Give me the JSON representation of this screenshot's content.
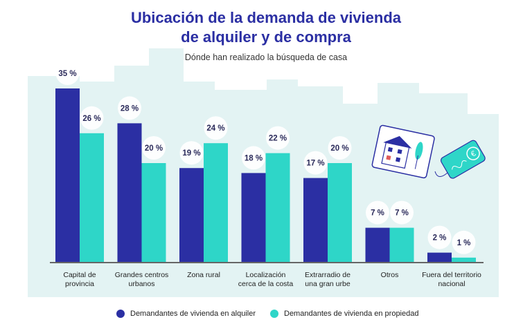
{
  "title_line1": "Ubicación de la demanda de vivienda",
  "title_line2": "de alquiler y de compra",
  "subtitle": "Dónde han realizado la búsqueda de casa",
  "colors": {
    "alquiler": "#2b2fa3",
    "propiedad": "#2ed6c8",
    "background_city": "#e3f3f3"
  },
  "chart_data": {
    "type": "bar",
    "categories": [
      [
        "Capital de",
        "provincia"
      ],
      [
        "Grandes centros",
        "urbanos"
      ],
      [
        "Zona rural"
      ],
      [
        "Localización",
        "cerca de la costa"
      ],
      [
        "Extrarradio de",
        "una gran urbe"
      ],
      [
        "Otros"
      ],
      [
        "Fuera del territorio",
        "nacional"
      ]
    ],
    "series": [
      {
        "name": "Demandantes de vivienda en alquiler",
        "values": [
          35,
          28,
          19,
          18,
          17,
          7,
          2
        ],
        "labels": [
          "35 %",
          "28 %",
          "19 %",
          "18 %",
          "17 %",
          "7 %",
          "2 %"
        ]
      },
      {
        "name": "Demandantes de vivienda en propiedad",
        "values": [
          26,
          20,
          24,
          22,
          20,
          7,
          1
        ],
        "labels": [
          "26 %",
          "20 %",
          "24 %",
          "22 %",
          "20 %",
          "7 %",
          "1 %"
        ]
      }
    ],
    "ylim": [
      0,
      35
    ],
    "grid": false,
    "legend_position": "bottom"
  }
}
